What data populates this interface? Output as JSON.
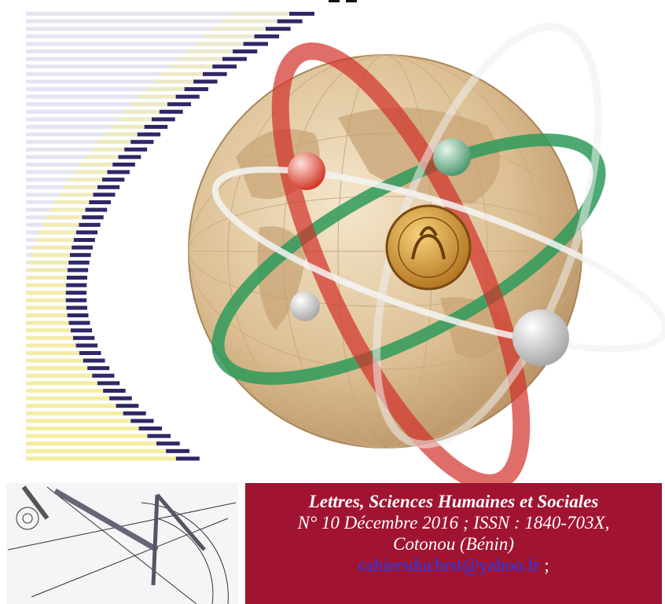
{
  "cover": {
    "journal": "Lettres, Sciences Humaines et Sociales",
    "issue": "N° 10 Décembre  2016 ; ISSN : 1840-703X,",
    "place": "Cotonou (Bénin)",
    "email": "cahiersducbrst@yahoo.fr",
    "separator": ";"
  }
}
